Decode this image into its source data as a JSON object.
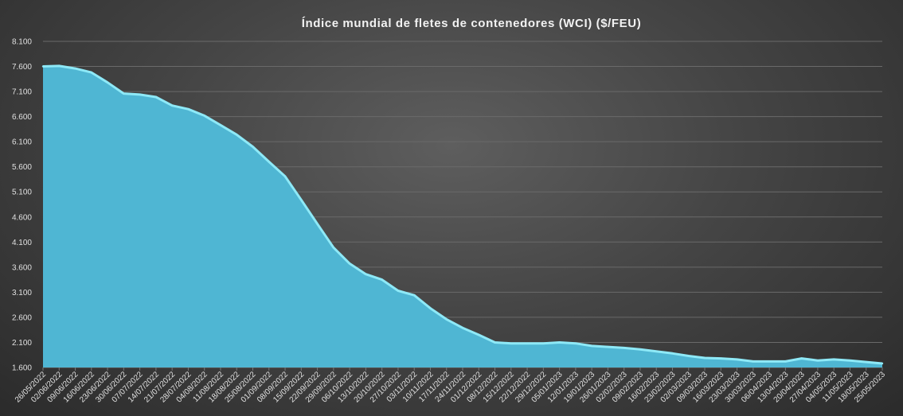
{
  "chart_data": {
    "type": "area",
    "title": "Índice mundial de fletes de contenedores (WCI) ($/FEU)",
    "xlabel": "",
    "ylabel": "",
    "ylim": [
      1600,
      8100
    ],
    "yticks": [
      "1.600",
      "2.100",
      "2.600",
      "3.100",
      "3.600",
      "4.100",
      "4.600",
      "5.100",
      "5.600",
      "6.100",
      "6.600",
      "7.100",
      "7.600",
      "8.100"
    ],
    "ytick_values": [
      1600,
      2100,
      2600,
      3100,
      3600,
      4100,
      4600,
      5100,
      5600,
      6100,
      6600,
      7100,
      7600,
      8100
    ],
    "grid": true,
    "fill_color": "#4fb6d3",
    "line_color": "#8ee9f7",
    "categories": [
      "26/05/2022",
      "02/06/2022",
      "09/06/2022",
      "16/06/2022",
      "23/06/2022",
      "30/06/2022",
      "07/07/2022",
      "14/07/2022",
      "21/07/2022",
      "28/07/2022",
      "04/08/2022",
      "11/08/2022",
      "18/08/2022",
      "25/08/2022",
      "01/09/2022",
      "08/09/2022",
      "15/09/2022",
      "22/09/2022",
      "29/09/2022",
      "06/10/2022",
      "13/10/2022",
      "20/10/2022",
      "27/10/2022",
      "03/11/2022",
      "10/11/2022",
      "17/11/2022",
      "24/11/2022",
      "01/12/2022",
      "08/12/2022",
      "15/12/2022",
      "22/12/2022",
      "29/12/2022",
      "05/01/2023",
      "12/01/2023",
      "19/01/2023",
      "26/01/2023",
      "02/02/2023",
      "09/02/2023",
      "16/02/2023",
      "23/02/2023",
      "02/03/2023",
      "09/03/2023",
      "16/03/2023",
      "23/03/2023",
      "30/03/2023",
      "06/04/2023",
      "13/04/2023",
      "20/04/2023",
      "27/04/2023",
      "04/05/2023",
      "11/05/2023",
      "18/05/2023",
      "25/05/2023"
    ],
    "series": [
      {
        "values": [
          7600,
          7610,
          7560,
          7480,
          7280,
          7060,
          7040,
          6990,
          6820,
          6750,
          6620,
          6430,
          6240,
          6000,
          5700,
          5410,
          4940,
          4460,
          3990,
          3670,
          3460,
          3350,
          3130,
          3040,
          2780,
          2560,
          2390,
          2250,
          2100,
          2080,
          2080,
          2080,
          2100,
          2080,
          2030,
          2010,
          1990,
          1960,
          1920,
          1880,
          1830,
          1790,
          1780,
          1760,
          1720,
          1720,
          1720,
          1780,
          1740,
          1760,
          1740,
          1710,
          1680
        ]
      }
    ]
  }
}
